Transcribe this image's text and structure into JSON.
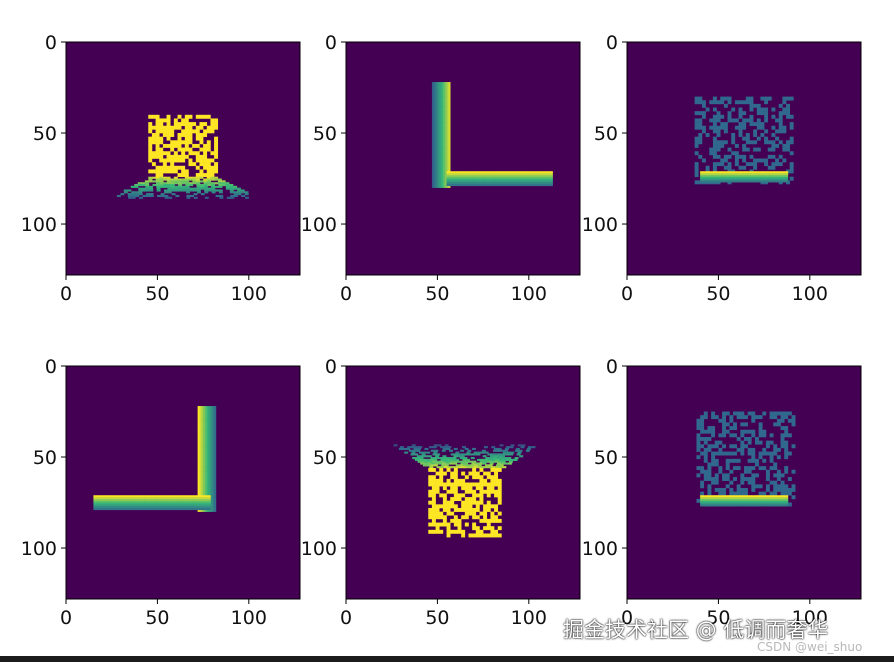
{
  "colors": {
    "background": "#440154",
    "low": "#31688e",
    "mid": "#35b779",
    "high": "#fde725"
  },
  "watermark": {
    "main": "掘金技术社区 @ 低调而奢华",
    "sub": "CSDN @wei_shuo"
  },
  "chart_data": [
    {
      "type": "heatmap",
      "colormap": "viridis",
      "image_size": [
        128,
        128
      ],
      "xlim": [
        0,
        127
      ],
      "ylim": [
        127,
        0
      ],
      "xticks": [
        0,
        50,
        100
      ],
      "yticks": [
        0,
        50,
        100
      ],
      "x_tick_labels": [
        "0",
        "50",
        "100"
      ],
      "y_tick_labels": [
        "0",
        "50",
        "100"
      ],
      "shapes": [
        {
          "kind": "noise_rect",
          "x": [
            45,
            82
          ],
          "y": [
            40,
            74
          ],
          "fill_prob": 0.65,
          "on": "high",
          "off": "background"
        },
        {
          "kind": "trapezoid_gradient",
          "x_top": [
            45,
            82
          ],
          "x_bottom": [
            22,
            108
          ],
          "y": [
            74,
            86
          ],
          "bright": "top"
        }
      ]
    },
    {
      "type": "heatmap",
      "colormap": "viridis",
      "image_size": [
        128,
        128
      ],
      "xlim": [
        0,
        127
      ],
      "ylim": [
        127,
        0
      ],
      "xticks": [
        0,
        50,
        100
      ],
      "yticks": [
        0,
        50,
        100
      ],
      "x_tick_labels": [
        "0",
        "50",
        "100"
      ],
      "y_tick_labels": [
        "0",
        "50",
        "100"
      ],
      "shapes": [
        {
          "kind": "vertical_gradient_bar",
          "x": [
            47,
            57
          ],
          "y": [
            22,
            79
          ],
          "bright": "right"
        },
        {
          "kind": "horizontal_gradient_bar",
          "x": [
            55,
            113
          ],
          "y": [
            71,
            79
          ],
          "bright": "top"
        }
      ]
    },
    {
      "type": "heatmap",
      "colormap": "viridis",
      "image_size": [
        128,
        128
      ],
      "xlim": [
        0,
        127
      ],
      "ylim": [
        127,
        0
      ],
      "xticks": [
        0,
        50,
        100
      ],
      "yticks": [
        0,
        50,
        100
      ],
      "x_tick_labels": [
        "0",
        "50",
        "100"
      ],
      "y_tick_labels": [
        "0",
        "50",
        "100"
      ],
      "shapes": [
        {
          "kind": "noise_rect",
          "x": [
            37,
            91
          ],
          "y": [
            30,
            77
          ],
          "fill_prob": 0.45,
          "on": "low",
          "off": "background"
        },
        {
          "kind": "horizontal_gradient_bar",
          "x": [
            40,
            88
          ],
          "y": [
            71,
            77
          ],
          "bright": "top"
        }
      ]
    },
    {
      "type": "heatmap",
      "colormap": "viridis",
      "image_size": [
        128,
        128
      ],
      "xlim": [
        0,
        127
      ],
      "ylim": [
        127,
        0
      ],
      "xticks": [
        0,
        50,
        100
      ],
      "yticks": [
        0,
        50,
        100
      ],
      "x_tick_labels": [
        "0",
        "50",
        "100"
      ],
      "y_tick_labels": [
        "0",
        "50",
        "100"
      ],
      "shapes": [
        {
          "kind": "vertical_gradient_bar",
          "x": [
            72,
            82
          ],
          "y": [
            22,
            79
          ],
          "bright": "left"
        },
        {
          "kind": "horizontal_gradient_bar",
          "x": [
            15,
            78
          ],
          "y": [
            71,
            79
          ],
          "bright": "top"
        }
      ]
    },
    {
      "type": "heatmap",
      "colormap": "viridis",
      "image_size": [
        128,
        128
      ],
      "xlim": [
        0,
        127
      ],
      "ylim": [
        127,
        0
      ],
      "xticks": [
        0,
        50,
        100
      ],
      "yticks": [
        0,
        50,
        100
      ],
      "x_tick_labels": [
        "0",
        "50",
        "100"
      ],
      "y_tick_labels": [
        "0",
        "50",
        "100"
      ],
      "shapes": [
        {
          "kind": "trapezoid_gradient",
          "x_top": [
            26,
            104
          ],
          "x_bottom": [
            45,
            85
          ],
          "y": [
            43,
            56
          ],
          "bright": "bottom"
        },
        {
          "kind": "noise_rect",
          "x": [
            45,
            85
          ],
          "y": [
            56,
            93
          ],
          "fill_prob": 0.65,
          "on": "high",
          "off": "background"
        }
      ]
    },
    {
      "type": "heatmap",
      "colormap": "viridis",
      "image_size": [
        128,
        128
      ],
      "xlim": [
        0,
        127
      ],
      "ylim": [
        127,
        0
      ],
      "xticks": [
        0,
        50,
        100
      ],
      "yticks": [
        0,
        50,
        100
      ],
      "x_tick_labels": [
        "0",
        "50",
        "100"
      ],
      "y_tick_labels": [
        "0",
        "50",
        "100"
      ],
      "shapes": [
        {
          "kind": "noise_rect",
          "x": [
            38,
            91
          ],
          "y": [
            25,
            77
          ],
          "fill_prob": 0.45,
          "on": "low",
          "off": "background"
        },
        {
          "kind": "horizontal_gradient_bar",
          "x": [
            40,
            88
          ],
          "y": [
            71,
            77
          ],
          "bright": "top"
        }
      ]
    }
  ]
}
